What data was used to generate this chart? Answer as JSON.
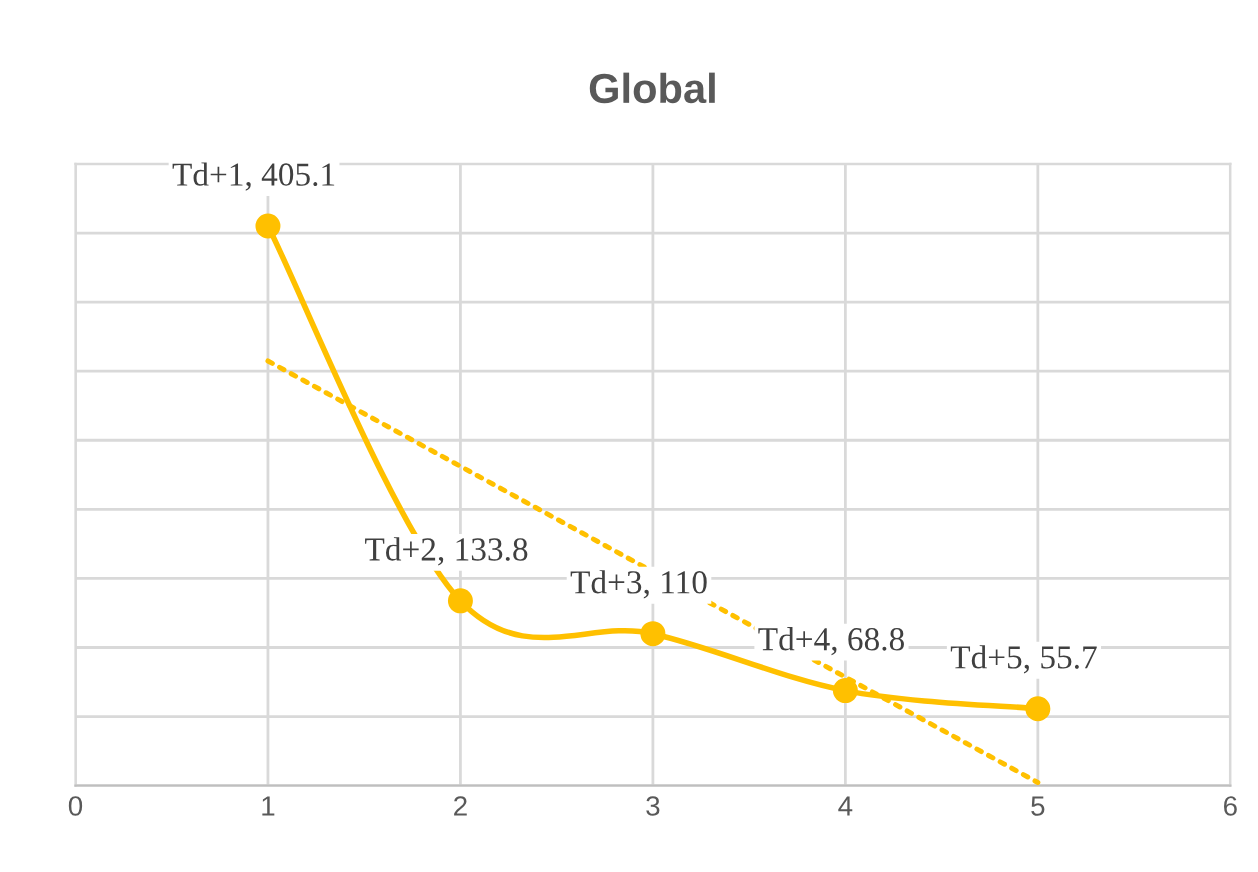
{
  "chart_data": {
    "type": "line",
    "title": "Global",
    "xlim": [
      0,
      6
    ],
    "xticks": [
      0,
      1,
      2,
      3,
      4,
      5,
      6
    ],
    "ylim": [
      0,
      450
    ],
    "yticks": [
      {
        "value": 0,
        "label": null
      },
      {
        "value": 50,
        "label": null
      },
      {
        "value": 100,
        "label": null
      },
      {
        "value": 150,
        "label": null
      },
      {
        "value": 200,
        "label": null
      },
      {
        "value": 250,
        "label": null
      },
      {
        "value": 300,
        "label": null
      },
      {
        "value": 350,
        "label": null
      },
      {
        "value": 400,
        "label": null
      },
      {
        "value": 450,
        "label": null
      }
    ],
    "tick_labels": "x",
    "grid": true,
    "series": [
      {
        "color": "#ffc000",
        "marker": "circle",
        "line_style": "solid",
        "x": [
          1,
          2,
          3,
          4,
          5
        ],
        "values": [
          405.1,
          133.8,
          110,
          68.8,
          55.7
        ],
        "value_labels": [
          "Td+1, 405.1",
          "Td+2, 133.8",
          "Td+3, 110",
          "Td+4, 68.8",
          "Td+5, 55.7"
        ]
      },
      {
        "color": "#ffc000",
        "marker": "none",
        "line_style": "dotted",
        "x": [
          1,
          5
        ],
        "values": [
          307.4,
          2.3
        ]
      }
    ]
  }
}
